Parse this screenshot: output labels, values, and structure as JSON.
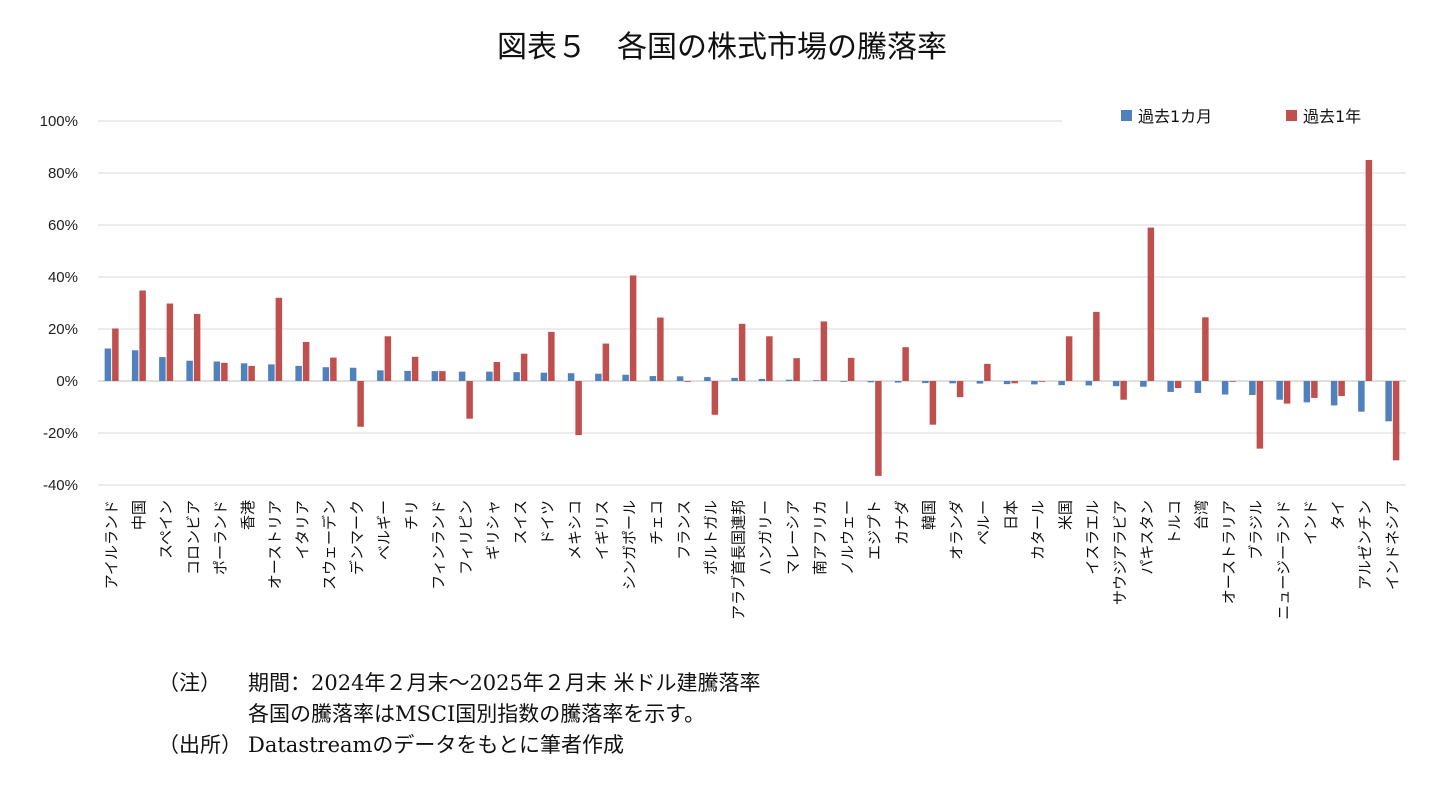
{
  "title": "図表５　各国の株式市場の騰落率",
  "notes": {
    "note_label": "（注）",
    "note_line1": "期間：2024年２月末～2025年２月末 米ドル建騰落率",
    "note_line2": "各国の騰落率はMSCI国別指数の騰落率を示す。",
    "source_label": "（出所）",
    "source_text": "Datastreamのデータをもとに筆者作成"
  },
  "chart_data": {
    "type": "bar",
    "ylim": [
      -40,
      100
    ],
    "yticks": [
      -40,
      -20,
      0,
      20,
      40,
      60,
      80,
      100
    ],
    "ytick_labels": [
      "-40%",
      "-20%",
      "0%",
      "20%",
      "40%",
      "60%",
      "80%",
      "100%"
    ],
    "grid": true,
    "legend_position": "top-right",
    "colors": {
      "month": "#4F81BD",
      "year": "#C0504D"
    },
    "categories": [
      "アイルランド",
      "中国",
      "スペイン",
      "コロンビア",
      "ポーランド",
      "香港",
      "オーストリア",
      "イタリア",
      "スウェーデン",
      "デンマーク",
      "ベルギー",
      "チリ",
      "フィンランド",
      "フィリピン",
      "ギリシャ",
      "スイス",
      "ドイツ",
      "メキシコ",
      "イギリス",
      "シンガポール",
      "チェコ",
      "フランス",
      "ポルトガル",
      "アラブ首長国連邦",
      "ハンガリー",
      "マレーシア",
      "南アフリカ",
      "ノルウェー",
      "エジプト",
      "カナダ",
      "韓国",
      "オランダ",
      "ペルー",
      "日本",
      "カタール",
      "米国",
      "イスラエル",
      "サウジアラビア",
      "パキスタン",
      "トルコ",
      "台湾",
      "オーストラリア",
      "ブラジル",
      "ニュージーランド",
      "インド",
      "タイ",
      "アルゼンチン",
      "インドネシア"
    ],
    "series": [
      {
        "name": "過去1カ月",
        "values": [
          12.5,
          11.8,
          9.2,
          7.8,
          7.5,
          6.8,
          6.4,
          5.8,
          5.3,
          5.1,
          4.1,
          3.9,
          3.8,
          3.6,
          3.6,
          3.4,
          3.2,
          3.0,
          2.8,
          2.4,
          1.9,
          1.8,
          1.5,
          1.2,
          0.8,
          0.5,
          0.3,
          -0.2,
          -0.5,
          -0.6,
          -0.8,
          -0.9,
          -1.0,
          -1.2,
          -1.3,
          -1.6,
          -1.7,
          -2.0,
          -2.2,
          -4.2,
          -4.6,
          -5.2,
          -5.4,
          -7.2,
          -8.2,
          -9.4,
          -11.8,
          -15.5
        ]
      },
      {
        "name": "過去1年",
        "values": [
          20.2,
          34.8,
          29.8,
          25.8,
          7.0,
          5.8,
          32.0,
          15.0,
          9.0,
          -17.6,
          17.2,
          9.3,
          3.8,
          -14.5,
          7.3,
          10.5,
          18.9,
          -20.8,
          14.4,
          40.6,
          24.4,
          -0.3,
          -13.0,
          22.0,
          17.2,
          8.8,
          22.9,
          8.9,
          -36.5,
          13.0,
          -16.8,
          -6.2,
          6.6,
          -0.9,
          -0.2,
          17.2,
          26.6,
          -7.2,
          59.0,
          -2.7,
          24.5,
          -0.3,
          -26.0,
          -8.7,
          -6.5,
          -5.8,
          85.0,
          -30.5
        ]
      }
    ]
  }
}
